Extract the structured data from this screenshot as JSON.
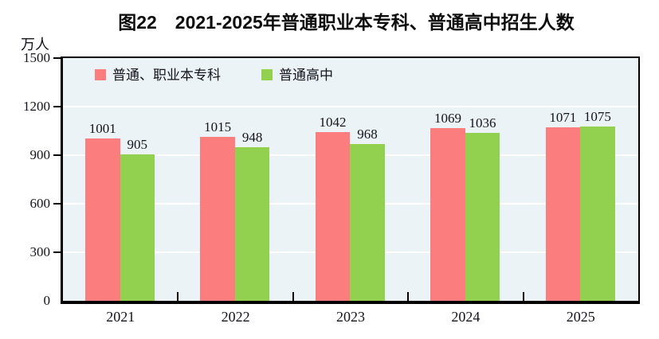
{
  "chart_data": {
    "type": "bar",
    "title": "图22　2021-2025年普通职业本专科、普通高中招生人数",
    "unit_label": "万人",
    "categories": [
      "2021",
      "2022",
      "2023",
      "2024",
      "2025"
    ],
    "series": [
      {
        "name": "普通、职业本专科",
        "color": "#FB7D7D",
        "values": [
          1001,
          1015,
          1042,
          1069,
          1071
        ]
      },
      {
        "name": "普通高中",
        "color": "#92D050",
        "values": [
          905,
          948,
          968,
          1036,
          1075
        ]
      }
    ],
    "ylim": [
      0,
      1500
    ],
    "yticks": [
      0,
      300,
      600,
      900,
      1200,
      1500
    ],
    "grid": {
      "horizontal": true,
      "color": "#FFFFFF"
    },
    "legend_position": "top-inside",
    "plot_background": "#ECF3F7",
    "axis_color": "#000000",
    "text_color": "#14141C"
  }
}
